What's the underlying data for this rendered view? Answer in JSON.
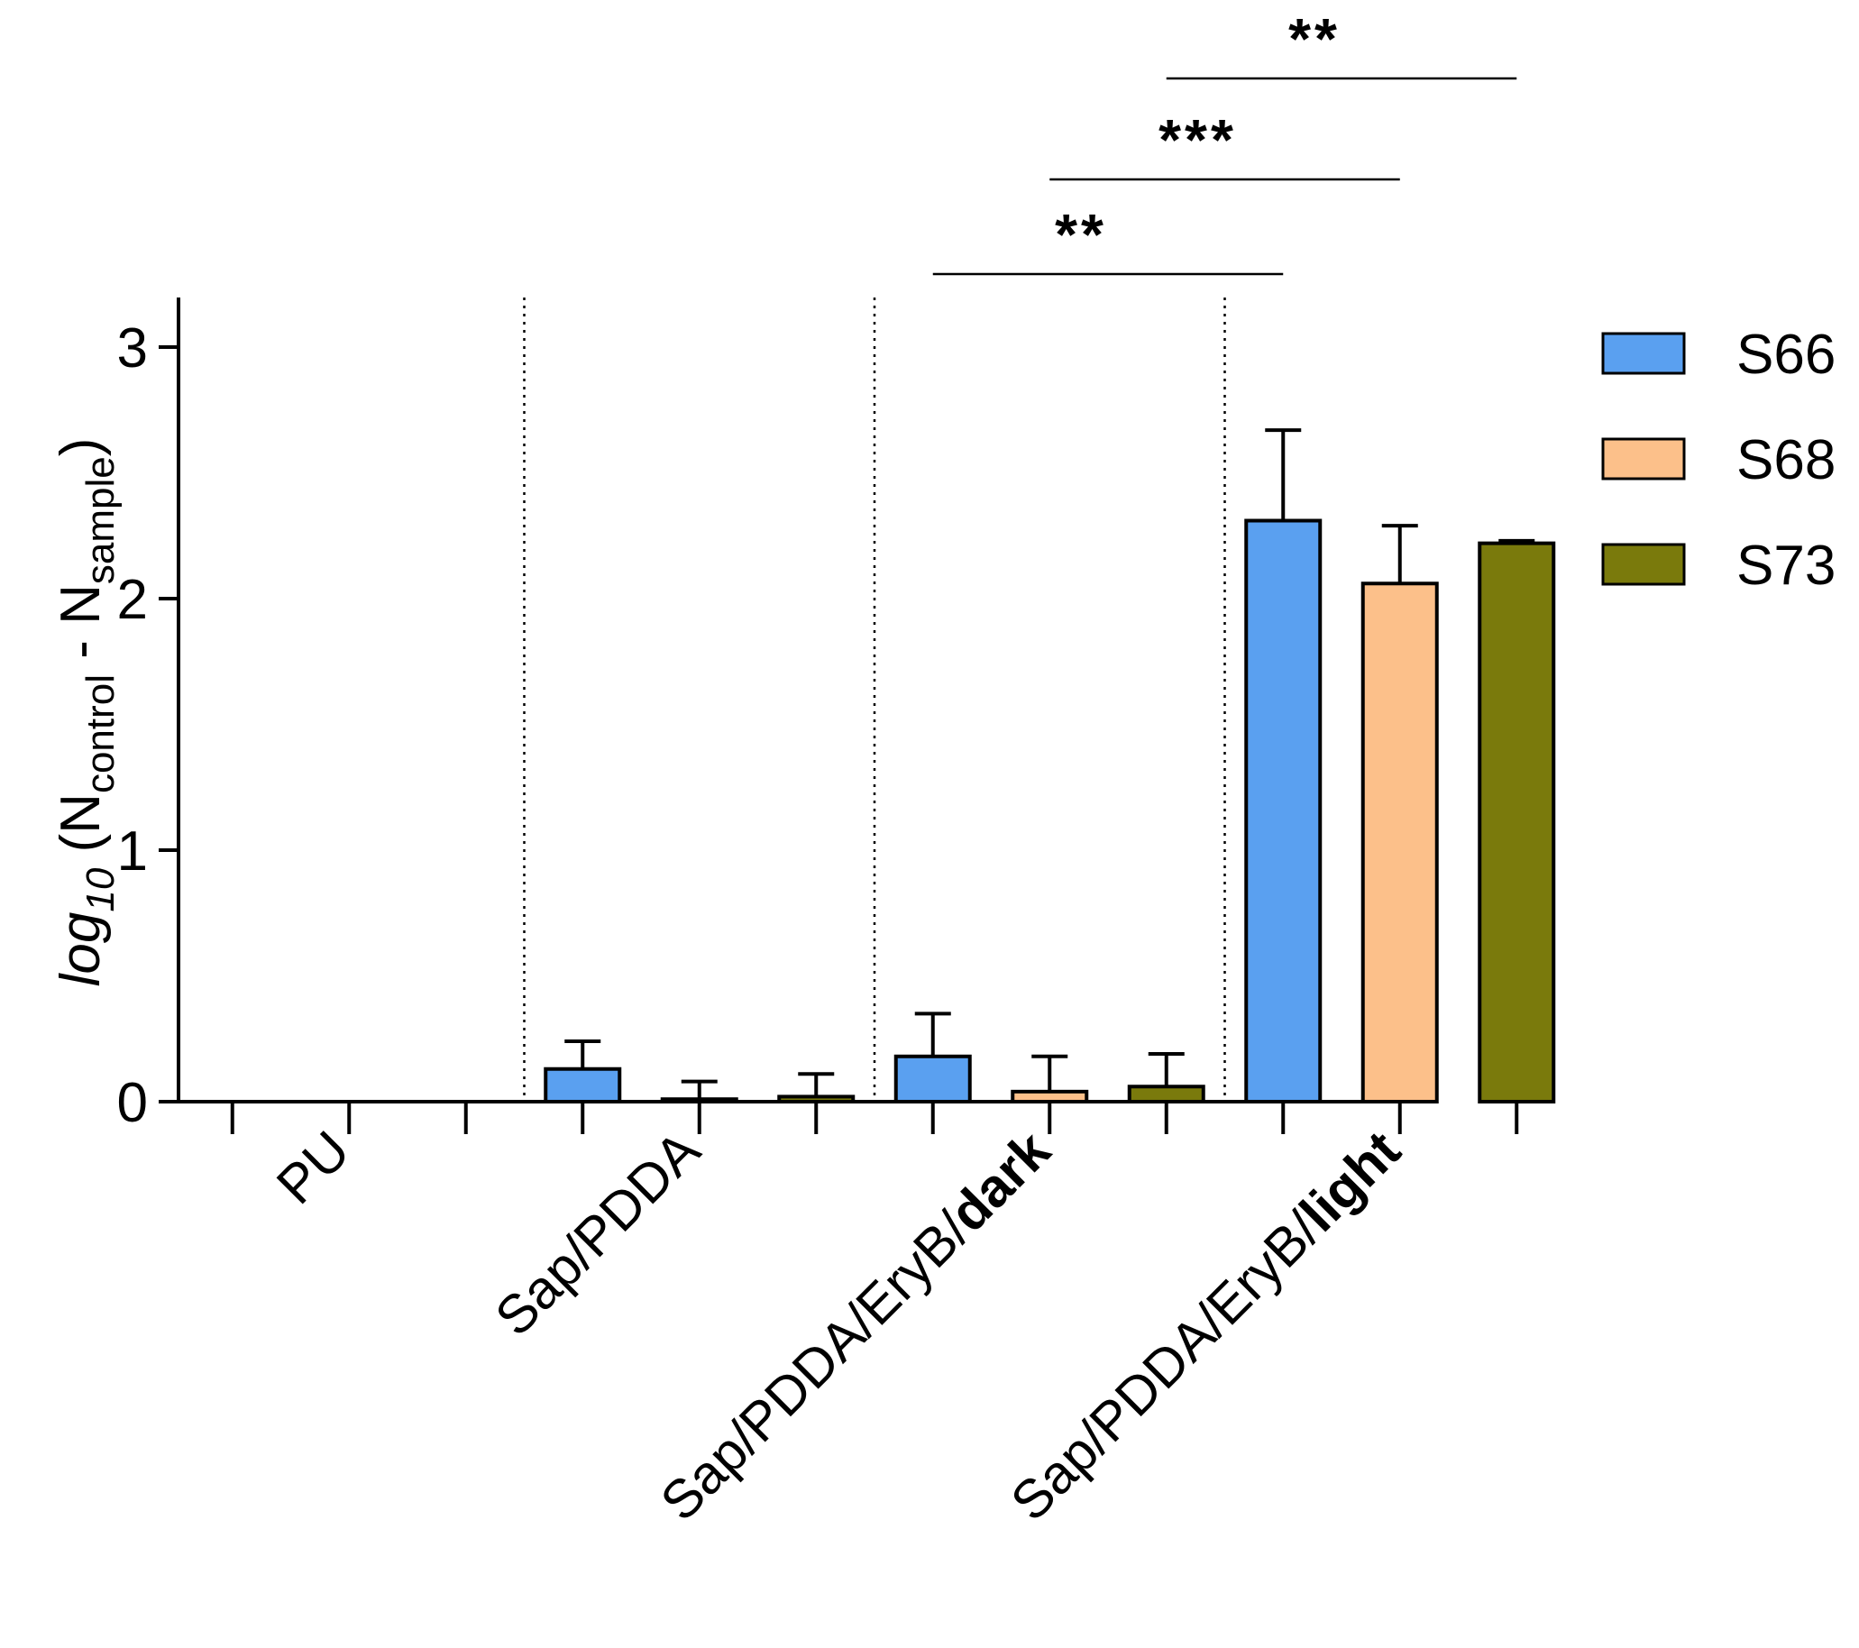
{
  "chart_data": {
    "type": "bar",
    "title": "",
    "ylabel": {
      "prefix": "log",
      "prefix_sub": "10",
      "open": " (N",
      "sub1": "control",
      "mid": " - N",
      "sub2": "sample",
      "close": ")"
    },
    "xlabel": "",
    "ylim": [
      0,
      3.2
    ],
    "yticks": [
      0,
      1,
      2,
      3
    ],
    "ytick_labels": [
      "0",
      "1",
      "2",
      "3"
    ],
    "groups": [
      {
        "label": "PU",
        "label_bold": ""
      },
      {
        "label": "Sap/PDDA",
        "label_bold": ""
      },
      {
        "label": "Sap/PDDA/EryB/",
        "label_bold": "dark"
      },
      {
        "label": "Sap/PDDA/EryB/",
        "label_bold": "light"
      }
    ],
    "series": [
      {
        "name": "S66",
        "color": "#5aa0f0",
        "values": [
          0,
          0.13,
          0.18,
          2.31
        ],
        "errors": [
          0,
          0.11,
          0.17,
          0.36
        ]
      },
      {
        "name": "S68",
        "color": "#fcc08a",
        "values": [
          0,
          0.01,
          0.04,
          2.06
        ],
        "errors": [
          0,
          0.07,
          0.14,
          0.23
        ]
      },
      {
        "name": "S73",
        "color": "#7a7a0c",
        "values": [
          0,
          0.02,
          0.06,
          2.22
        ],
        "errors": [
          0,
          0.09,
          0.13,
          0.01
        ]
      }
    ],
    "group_separators": "dotted",
    "significance": [
      {
        "from_bar": "Sap/PDDA/EryB/dark S66",
        "to_bar": "Sap/PDDA/EryB/light S66",
        "label": "**"
      },
      {
        "from_bar": "Sap/PDDA/EryB/dark S68",
        "to_bar": "Sap/PDDA/EryB/light S68",
        "label": "***"
      },
      {
        "from_bar": "Sap/PDDA/EryB/dark S73",
        "to_bar": "Sap/PDDA/EryB/light S73",
        "label": "**"
      }
    ],
    "legend_position": "right"
  }
}
